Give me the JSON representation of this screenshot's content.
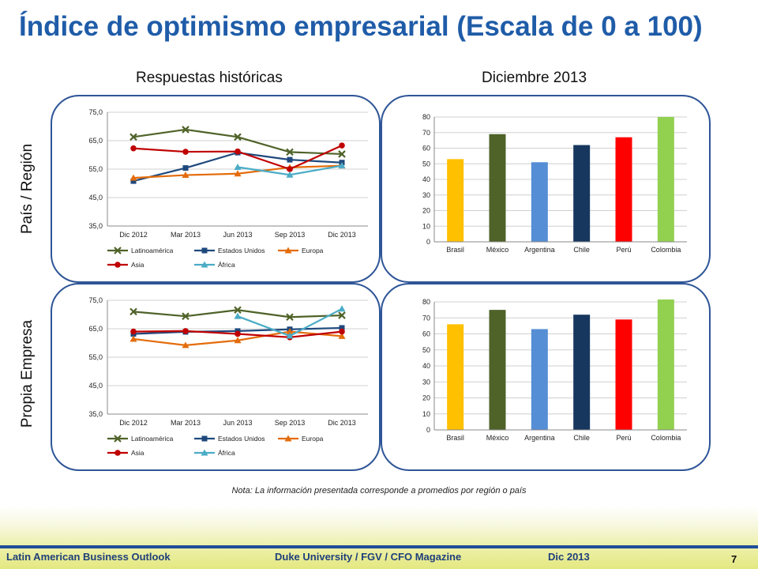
{
  "title": "Índice de optimismo empresarial (Escala de 0 a 100)",
  "column_headers": {
    "left": "Respuestas históricas",
    "right": "Diciembre 2013"
  },
  "row_headers": {
    "top": "País / Región",
    "bottom": "Propia Empresa"
  },
  "note": "Nota: La información presentada corresponde a promedios por región o país",
  "footer": {
    "left": "Latin American Business Outlook",
    "center": "Duke University / FGV / CFO Magazine",
    "date": "Dic 2013",
    "page": "7"
  },
  "colors": {
    "Latinoamérica": "#4f6228",
    "Estados Unidos": "#1f497d",
    "Europa": "#e46c0a",
    "Asia": "#c00000",
    "África": "#4bacc6",
    "Brasil": "#ffc000",
    "México": "#4f6228",
    "Argentina": "#558ed5",
    "Chile": "#17375e",
    "Perú": "#ff0000",
    "Colombia": "#92d050"
  },
  "chart_data": [
    {
      "type": "line",
      "x": [
        "Dic 2012",
        "Mar 2013",
        "Jun 2013",
        "Sep 2013",
        "Dic 2013"
      ],
      "ylim": [
        35,
        75
      ],
      "yticks": [
        "35,0",
        "45,0",
        "55,0",
        "65,0",
        "75,0"
      ],
      "legend": "bottom",
      "series": [
        {
          "name": "Latinoamérica",
          "marker": "x",
          "values": [
            66.3,
            68.9,
            66.3,
            61.0,
            60.3
          ]
        },
        {
          "name": "Estados Unidos",
          "marker": "square",
          "values": [
            50.8,
            55.4,
            60.8,
            58.3,
            57.3
          ]
        },
        {
          "name": "Europa",
          "marker": "triangle",
          "values": [
            51.9,
            52.9,
            53.4,
            55.6,
            56.2
          ]
        },
        {
          "name": "Asia",
          "marker": "circle",
          "values": [
            62.3,
            61.1,
            61.2,
            55.0,
            63.3
          ]
        },
        {
          "name": "África",
          "marker": "triangle",
          "values": [
            null,
            null,
            55.7,
            53.0,
            56.2
          ]
        }
      ]
    },
    {
      "type": "bar",
      "categories": [
        "Brasil",
        "México",
        "Argentina",
        "Chile",
        "Perú",
        "Colombia"
      ],
      "values": [
        53,
        69,
        51,
        62,
        67,
        80
      ],
      "ylim": [
        0,
        80
      ],
      "yticks": [
        "0",
        "10",
        "20",
        "30",
        "40",
        "50",
        "60",
        "70",
        "80"
      ]
    },
    {
      "type": "line",
      "x": [
        "Dic 2012",
        "Mar 2013",
        "Jun 2013",
        "Sep 2013",
        "Dic 2013"
      ],
      "ylim": [
        35,
        75
      ],
      "yticks": [
        "35,0",
        "45,0",
        "55,0",
        "65,0",
        "75,0"
      ],
      "legend": "bottom",
      "series": [
        {
          "name": "Latinoamérica",
          "marker": "x",
          "values": [
            71.0,
            69.4,
            71.6,
            69.1,
            69.7
          ]
        },
        {
          "name": "Estados Unidos",
          "marker": "square",
          "values": [
            63.2,
            63.9,
            64.2,
            64.8,
            65.3
          ]
        },
        {
          "name": "Europa",
          "marker": "triangle",
          "values": [
            61.4,
            59.2,
            60.9,
            64.0,
            62.4
          ]
        },
        {
          "name": "Asia",
          "marker": "circle",
          "values": [
            64.0,
            64.2,
            63.2,
            62.0,
            64.0
          ]
        },
        {
          "name": "África",
          "marker": "triangle",
          "values": [
            null,
            null,
            69.4,
            62.5,
            72.0
          ]
        }
      ]
    },
    {
      "type": "bar",
      "categories": [
        "Brasil",
        "México",
        "Argentina",
        "Chile",
        "Perú",
        "Colombia"
      ],
      "values": [
        66,
        75,
        63,
        72,
        69,
        84
      ],
      "ylim": [
        0,
        80
      ],
      "yticks": [
        "0",
        "10",
        "20",
        "30",
        "40",
        "50",
        "60",
        "70",
        "80"
      ]
    }
  ]
}
